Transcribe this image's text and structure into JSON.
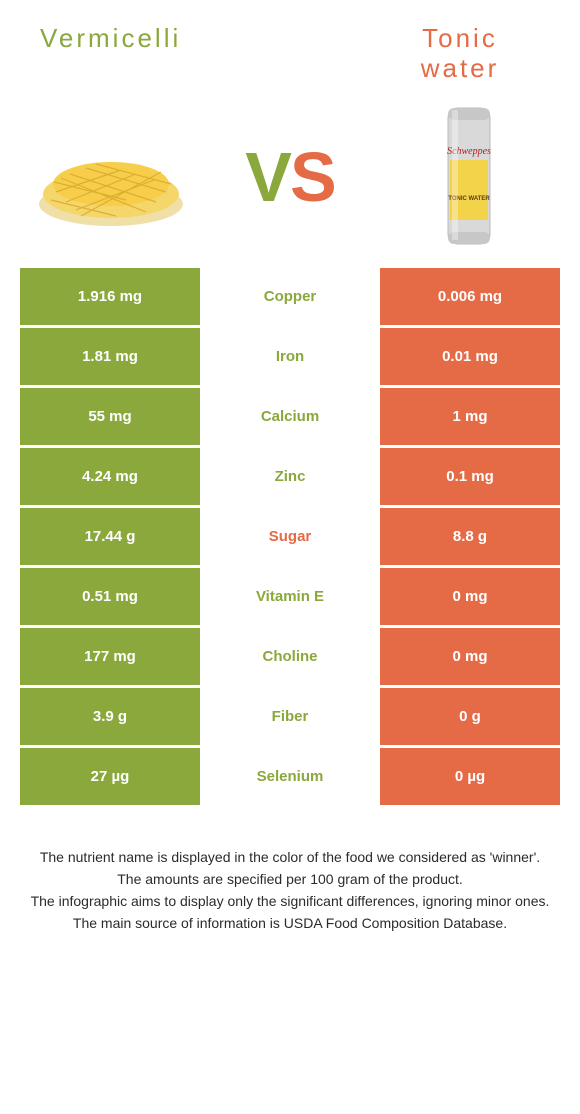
{
  "colors": {
    "left": "#8aa83c",
    "right": "#e56a46",
    "white": "#ffffff"
  },
  "titles": {
    "left": "Vermicelli",
    "right": "Tonic water"
  },
  "vs": {
    "v": "V",
    "s": "S"
  },
  "rows": [
    {
      "label": "Copper",
      "left": "1.916 mg",
      "right": "0.006 mg",
      "winner": "left"
    },
    {
      "label": "Iron",
      "left": "1.81 mg",
      "right": "0.01 mg",
      "winner": "left"
    },
    {
      "label": "Calcium",
      "left": "55 mg",
      "right": "1 mg",
      "winner": "left"
    },
    {
      "label": "Zinc",
      "left": "4.24 mg",
      "right": "0.1 mg",
      "winner": "left"
    },
    {
      "label": "Sugar",
      "left": "17.44 g",
      "right": "8.8 g",
      "winner": "right"
    },
    {
      "label": "Vitamin E",
      "left": "0.51 mg",
      "right": "0 mg",
      "winner": "left"
    },
    {
      "label": "Choline",
      "left": "177 mg",
      "right": "0 mg",
      "winner": "left"
    },
    {
      "label": "Fiber",
      "left": "3.9 g",
      "right": "0 g",
      "winner": "left"
    },
    {
      "label": "Selenium",
      "left": "27 µg",
      "right": "0 µg",
      "winner": "left"
    }
  ],
  "footnotes": [
    "The nutrient name is displayed in the color of the food we considered as 'winner'.",
    "The amounts are specified per 100 gram of the product.",
    "The infographic aims to display only the significant differences, ignoring minor ones.",
    "The main source of information is USDA Food Composition Database."
  ]
}
